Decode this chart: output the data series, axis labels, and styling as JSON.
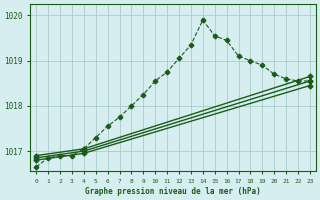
{
  "background_color": "#d6eef0",
  "grid_color": "#aacccc",
  "line_color": "#1a5c1a",
  "title": "Graphe pression niveau de la mer (hPa)",
  "xlim": [
    -0.5,
    23.5
  ],
  "ylim": [
    1016.55,
    1020.25
  ],
  "yticks": [
    1017,
    1018,
    1019,
    1020
  ],
  "xticks": [
    0,
    1,
    2,
    3,
    4,
    5,
    6,
    7,
    8,
    9,
    10,
    11,
    12,
    13,
    14,
    15,
    16,
    17,
    18,
    19,
    20,
    21,
    22,
    23
  ],
  "series": [
    {
      "x": [
        0,
        1,
        2,
        3,
        4,
        5,
        6,
        7,
        8,
        9,
        10,
        11,
        12,
        13,
        14,
        15,
        16,
        17,
        18,
        19,
        20,
        21,
        22,
        23
      ],
      "y": [
        1016.65,
        1016.85,
        1016.9,
        1016.9,
        1017.05,
        1017.3,
        1017.55,
        1017.75,
        1018.0,
        1018.25,
        1018.55,
        1018.75,
        1019.05,
        1019.35,
        1019.9,
        1019.55,
        1019.45,
        1019.1,
        1019.0,
        1018.9,
        1018.7,
        1018.6,
        1018.55,
        1018.55
      ],
      "marker": "P",
      "markersize": 3.0,
      "linewidth": 0.8,
      "linestyle": "--"
    },
    {
      "x": [
        0,
        4,
        23
      ],
      "y": [
        1016.9,
        1017.05,
        1018.65
      ],
      "marker": "D",
      "markersize": 2.5,
      "linewidth": 1.0,
      "linestyle": "-"
    },
    {
      "x": [
        0,
        4,
        23
      ],
      "y": [
        1016.85,
        1017.0,
        1018.55
      ],
      "marker": "D",
      "markersize": 2.5,
      "linewidth": 1.0,
      "linestyle": "-"
    },
    {
      "x": [
        0,
        4,
        23
      ],
      "y": [
        1016.8,
        1016.95,
        1018.45
      ],
      "marker": "D",
      "markersize": 2.5,
      "linewidth": 1.0,
      "linestyle": "-"
    }
  ]
}
